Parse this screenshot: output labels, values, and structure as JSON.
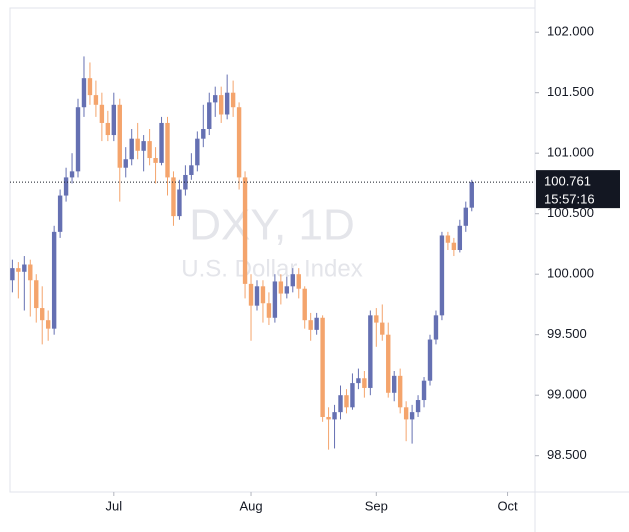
{
  "chart_data": {
    "type": "candlestick",
    "title": "DXY, 1D",
    "subtitle": "U.S. Dollar Index",
    "countdown": "15:57:16",
    "up_color": "#6570b2",
    "down_color": "#f4a46c",
    "ylim": [
      98.2,
      102.2
    ],
    "yticks": [
      {
        "value": 98.5,
        "label": "98.500"
      },
      {
        "value": 99,
        "label": "99.000"
      },
      {
        "value": 99.5,
        "label": "99.500"
      },
      {
        "value": 100,
        "label": "100.000"
      },
      {
        "value": 100.5,
        "label": "100.500"
      },
      {
        "value": 101,
        "label": "101.000"
      },
      {
        "value": 101.5,
        "label": "101.500"
      },
      {
        "value": 102,
        "label": "102.000"
      }
    ],
    "xlim": [
      -0.4,
      87.6
    ],
    "xticks": [
      {
        "value": 17,
        "label": "Jul"
      },
      {
        "value": 40,
        "label": "Aug"
      },
      {
        "value": 61,
        "label": "Sep"
      },
      {
        "value": 83,
        "label": "Oct"
      }
    ],
    "ohlc": [
      [
        99.95,
        100.12,
        99.85,
        100.05
      ],
      [
        100.05,
        100.1,
        99.8,
        100.02
      ],
      [
        100.02,
        100.15,
        99.7,
        100.08
      ],
      [
        100.08,
        100.12,
        99.65,
        99.95
      ],
      [
        99.95,
        100,
        99.6,
        99.72
      ],
      [
        99.72,
        99.9,
        99.42,
        99.62
      ],
      [
        99.62,
        99.7,
        99.45,
        99.55
      ],
      [
        99.55,
        100.4,
        99.5,
        100.35
      ],
      [
        100.35,
        100.7,
        100.3,
        100.65
      ],
      [
        100.65,
        100.88,
        100.6,
        100.8
      ],
      [
        100.8,
        101,
        100.75,
        100.85
      ],
      [
        100.85,
        101.45,
        100.8,
        101.38
      ],
      [
        101.38,
        101.8,
        101.3,
        101.62
      ],
      [
        101.62,
        101.75,
        101.4,
        101.48
      ],
      [
        101.48,
        101.6,
        101.3,
        101.4
      ],
      [
        101.4,
        101.5,
        101.1,
        101.25
      ],
      [
        101.25,
        101.35,
        101.1,
        101.15
      ],
      [
        101.15,
        101.5,
        101.1,
        101.4
      ],
      [
        101.4,
        101.45,
        100.6,
        100.88
      ],
      [
        100.88,
        101.05,
        100.8,
        100.95
      ],
      [
        100.95,
        101.2,
        100.9,
        101.12
      ],
      [
        101.12,
        101.25,
        100.95,
        101.02
      ],
      [
        101.02,
        101.15,
        100.85,
        101.1
      ],
      [
        101.1,
        101.2,
        100.9,
        100.96
      ],
      [
        100.96,
        101.05,
        100.75,
        100.92
      ],
      [
        100.92,
        101.3,
        100.9,
        101.25
      ],
      [
        101.25,
        101.3,
        100.65,
        100.8
      ],
      [
        100.8,
        100.85,
        100.4,
        100.48
      ],
      [
        100.48,
        100.78,
        100.45,
        100.7
      ],
      [
        100.7,
        100.9,
        100.65,
        100.82
      ],
      [
        100.82,
        101,
        100.78,
        100.9
      ],
      [
        100.9,
        101.18,
        100.85,
        101.12
      ],
      [
        101.12,
        101.4,
        101.05,
        101.2
      ],
      [
        101.2,
        101.5,
        101.15,
        101.42
      ],
      [
        101.42,
        101.55,
        101.3,
        101.48
      ],
      [
        101.48,
        101.55,
        101.25,
        101.32
      ],
      [
        101.32,
        101.65,
        101.28,
        101.5
      ],
      [
        101.5,
        101.6,
        101.3,
        101.38
      ],
      [
        101.38,
        101.42,
        100.7,
        100.8
      ],
      [
        100.8,
        100.85,
        99.8,
        99.92
      ],
      [
        99.92,
        100,
        99.45,
        99.74
      ],
      [
        99.74,
        99.95,
        99.7,
        99.9
      ],
      [
        99.9,
        99.95,
        99.6,
        99.76
      ],
      [
        99.76,
        99.85,
        99.58,
        99.64
      ],
      [
        99.64,
        100,
        99.6,
        99.94
      ],
      [
        99.94,
        100,
        99.75,
        99.84
      ],
      [
        99.84,
        99.98,
        99.8,
        99.9
      ],
      [
        99.9,
        100.05,
        99.85,
        100
      ],
      [
        100,
        100.05,
        99.8,
        99.88
      ],
      [
        99.88,
        99.9,
        99.55,
        99.62
      ],
      [
        99.62,
        99.68,
        99.45,
        99.54
      ],
      [
        99.54,
        99.68,
        99.5,
        99.64
      ],
      [
        99.64,
        99.66,
        98.78,
        98.82
      ],
      [
        98.82,
        98.9,
        98.55,
        98.8
      ],
      [
        98.8,
        98.92,
        98.56,
        98.86
      ],
      [
        98.86,
        99.08,
        98.8,
        99
      ],
      [
        99,
        99.05,
        98.85,
        98.9
      ],
      [
        98.9,
        99.18,
        98.88,
        99.1
      ],
      [
        99.1,
        99.22,
        99.05,
        99.14
      ],
      [
        99.14,
        99.2,
        98.98,
        99.06
      ],
      [
        99.06,
        99.7,
        99,
        99.66
      ],
      [
        99.66,
        99.72,
        99.4,
        99.6
      ],
      [
        99.6,
        99.75,
        99.45,
        99.5
      ],
      [
        99.5,
        99.6,
        98.98,
        99.02
      ],
      [
        99.02,
        99.2,
        98.95,
        99.16
      ],
      [
        99.16,
        99.22,
        98.85,
        98.9
      ],
      [
        98.9,
        98.95,
        98.62,
        98.8
      ],
      [
        98.8,
        98.92,
        98.6,
        98.86
      ],
      [
        98.86,
        99,
        98.82,
        98.96
      ],
      [
        98.96,
        99.15,
        98.9,
        99.12
      ],
      [
        99.12,
        99.5,
        99.08,
        99.46
      ],
      [
        99.46,
        99.7,
        99.42,
        99.66
      ],
      [
        99.66,
        100.35,
        99.62,
        100.32
      ],
      [
        100.32,
        100.35,
        100.2,
        100.26
      ],
      [
        100.26,
        100.3,
        100.15,
        100.2
      ],
      [
        100.2,
        100.45,
        100.18,
        100.4
      ],
      [
        100.4,
        100.6,
        100.35,
        100.55
      ],
      [
        100.55,
        100.78,
        100.52,
        100.761
      ]
    ]
  }
}
